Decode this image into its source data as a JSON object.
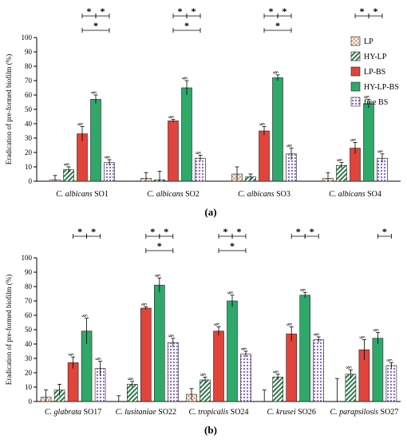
{
  "chart_data": [
    {
      "type": "bar",
      "panel_label": "(a)",
      "ylabel": "Eradication of pre-formed biofilm (%)",
      "ylim": [
        0,
        100
      ],
      "yticks": [
        0,
        10,
        20,
        30,
        40,
        50,
        60,
        70,
        80,
        90,
        100
      ],
      "categories": [
        {
          "species": "C. albicans",
          "strain": "SO1"
        },
        {
          "species": "C. albicans",
          "strain": "SO2"
        },
        {
          "species": "C. albicans",
          "strain": "SO3"
        },
        {
          "species": "C. albicans",
          "strain": "SO4"
        }
      ],
      "series": [
        {
          "name": "LP",
          "values": [
            1,
            2,
            5,
            2
          ],
          "errors": [
            3,
            4,
            5,
            4
          ],
          "marks": [
            "",
            "",
            "",
            ""
          ]
        },
        {
          "name": "HY-LP",
          "values": [
            8,
            1,
            3,
            11
          ],
          "errors": [
            2,
            6,
            2,
            2
          ],
          "marks": [
            "§",
            "",
            "",
            "§"
          ]
        },
        {
          "name": "LP-BS",
          "values": [
            33,
            42,
            35,
            23
          ],
          "errors": [
            5,
            1,
            3,
            4
          ],
          "marks": [
            "§",
            "§",
            "§",
            "§"
          ]
        },
        {
          "name": "HY-LP-BS",
          "values": [
            57,
            65,
            72,
            54
          ],
          "errors": [
            3,
            5,
            2,
            3
          ],
          "marks": [
            "§",
            "§",
            "§",
            "§"
          ]
        },
        {
          "name": "free BS",
          "values": [
            13,
            16,
            19,
            16
          ],
          "errors": [
            2,
            2,
            4,
            3
          ],
          "marks": [
            "§",
            "§",
            "§",
            "§"
          ]
        }
      ],
      "significance": [
        {
          "category": 0,
          "pairs": [
            [
              2,
              3
            ],
            [
              3,
              4
            ],
            [
              2,
              4
            ]
          ],
          "label": "*"
        },
        {
          "category": 1,
          "pairs": [
            [
              2,
              3
            ],
            [
              3,
              4
            ],
            [
              2,
              4
            ]
          ],
          "label": "*"
        },
        {
          "category": 2,
          "pairs": [
            [
              2,
              3
            ],
            [
              3,
              4
            ],
            [
              2,
              4
            ]
          ],
          "label": "*"
        },
        {
          "category": 3,
          "pairs": [
            [
              2,
              3
            ],
            [
              3,
              4
            ]
          ],
          "label": "*"
        }
      ]
    },
    {
      "type": "bar",
      "panel_label": "(b)",
      "ylabel": "Eradication of pre-formed biofilm (%)",
      "ylim": [
        0,
        100
      ],
      "yticks": [
        0,
        10,
        20,
        30,
        40,
        50,
        60,
        70,
        80,
        90,
        100
      ],
      "categories": [
        {
          "species": "C. glabrata",
          "strain": "SO17"
        },
        {
          "species": "C. lusitaniae",
          "strain": "SO22"
        },
        {
          "species": "C. tropicalis",
          "strain": "SO24"
        },
        {
          "species": "C. krusei",
          "strain": "SO26"
        },
        {
          "species": "C. parapsilosis",
          "strain": "SO27"
        }
      ],
      "series": [
        {
          "name": "LP",
          "values": [
            3,
            0,
            5,
            0,
            0
          ],
          "errors": [
            5,
            4,
            4,
            8,
            16
          ],
          "marks": [
            "",
            "",
            "",
            "",
            ""
          ]
        },
        {
          "name": "HY-LP",
          "values": [
            8,
            12,
            15,
            17,
            19
          ],
          "errors": [
            4,
            2,
            2,
            2,
            3
          ],
          "marks": [
            "",
            "§",
            "§",
            "§",
            "§"
          ]
        },
        {
          "name": "LP-BS",
          "values": [
            27,
            65,
            49,
            47,
            36
          ],
          "errors": [
            4,
            1,
            3,
            5,
            7
          ],
          "marks": [
            "§",
            "§",
            "§",
            "§",
            "§"
          ]
        },
        {
          "name": "HY-LP-BS",
          "values": [
            49,
            81,
            70,
            74,
            44
          ],
          "errors": [
            9,
            5,
            4,
            2,
            4
          ],
          "marks": [
            "§",
            "§",
            "§",
            "§",
            "§"
          ]
        },
        {
          "name": "free BS",
          "values": [
            23,
            41,
            33,
            43,
            25
          ],
          "errors": [
            5,
            3,
            2,
            2,
            2
          ],
          "marks": [
            "§",
            "§",
            "§",
            "§",
            "§"
          ]
        }
      ],
      "significance": [
        {
          "category": 0,
          "pairs": [
            [
              2,
              3
            ],
            [
              3,
              4
            ]
          ],
          "label": "*"
        },
        {
          "category": 1,
          "pairs": [
            [
              2,
              3
            ],
            [
              3,
              4
            ],
            [
              2,
              4
            ]
          ],
          "label": "*"
        },
        {
          "category": 2,
          "pairs": [
            [
              2,
              3
            ],
            [
              3,
              4
            ],
            [
              2,
              4
            ]
          ],
          "label": "*"
        },
        {
          "category": 3,
          "pairs": [
            [
              2,
              3
            ],
            [
              3,
              4
            ]
          ],
          "label": "*"
        },
        {
          "category": 4,
          "pairs": [
            [
              3,
              4
            ]
          ],
          "label": "*"
        }
      ]
    }
  ],
  "legend": {
    "placement": "right",
    "items": [
      {
        "label": "LP",
        "pattern": "checker",
        "color": "#d8a07a"
      },
      {
        "label": "HY-LP",
        "pattern": "diagonal",
        "color": "#2f7a4a"
      },
      {
        "label": "LP-BS",
        "pattern": "solid",
        "color": "#e0443a"
      },
      {
        "label": "HY-LP-BS",
        "pattern": "solid",
        "color": "#2fa86a"
      },
      {
        "label": "free BS",
        "pattern": "dots",
        "color": "#8a6fc0"
      }
    ]
  }
}
